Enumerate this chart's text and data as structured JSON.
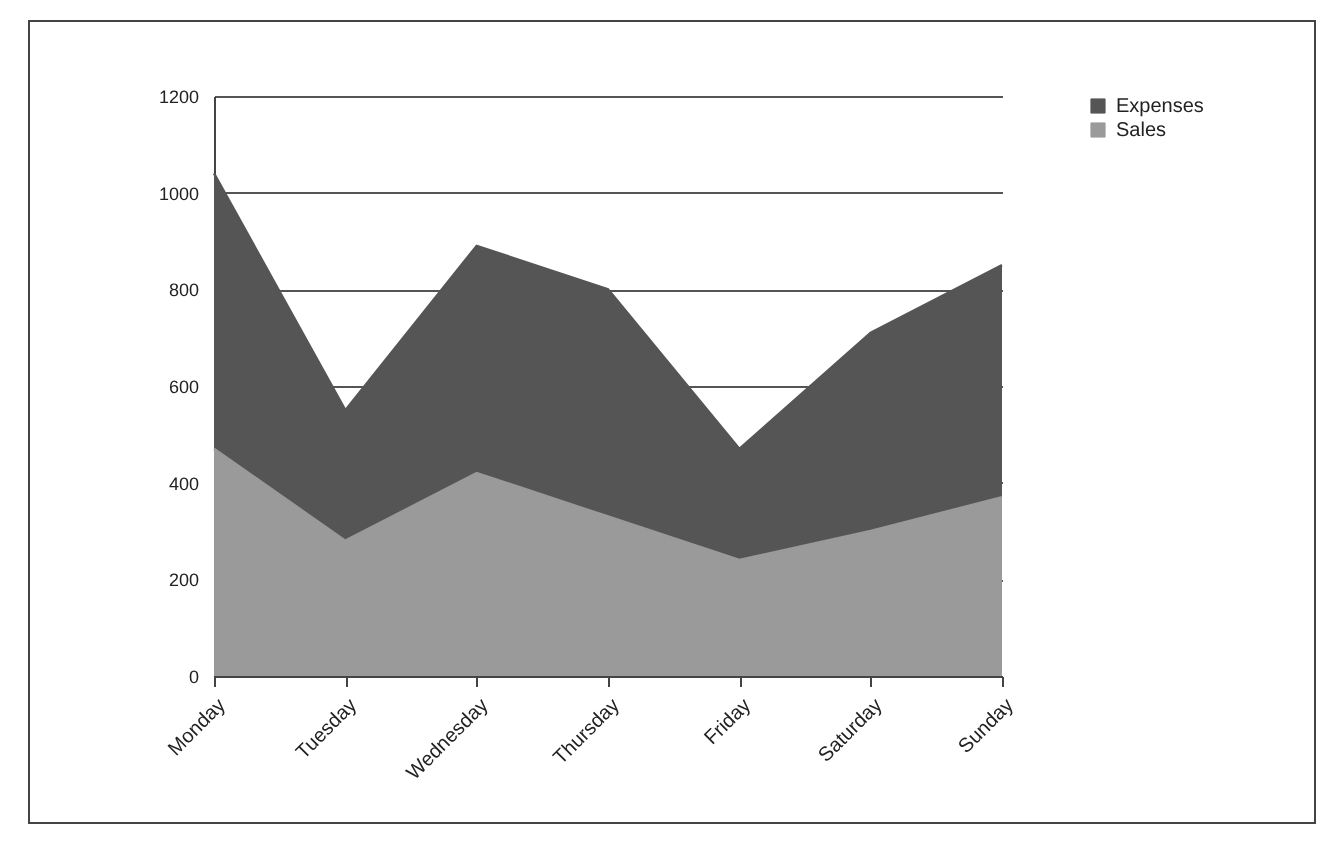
{
  "chart_data": {
    "type": "area",
    "categories": [
      "Monday",
      "Tuesday",
      "Wednesday",
      "Thursday",
      "Friday",
      "Saturday",
      "Sunday"
    ],
    "series": [
      {
        "name": "Expenses",
        "color": "#555555",
        "values": [
          1040,
          550,
          890,
          800,
          470,
          710,
          850
        ]
      },
      {
        "name": "Sales",
        "color": "#9a9a9a",
        "values": [
          470,
          280,
          420,
          330,
          240,
          300,
          370
        ]
      }
    ],
    "ylim": [
      0,
      1200
    ],
    "yticks": [
      0,
      200,
      400,
      600,
      800,
      1000,
      1200
    ],
    "grid": "y",
    "legend": "right"
  }
}
